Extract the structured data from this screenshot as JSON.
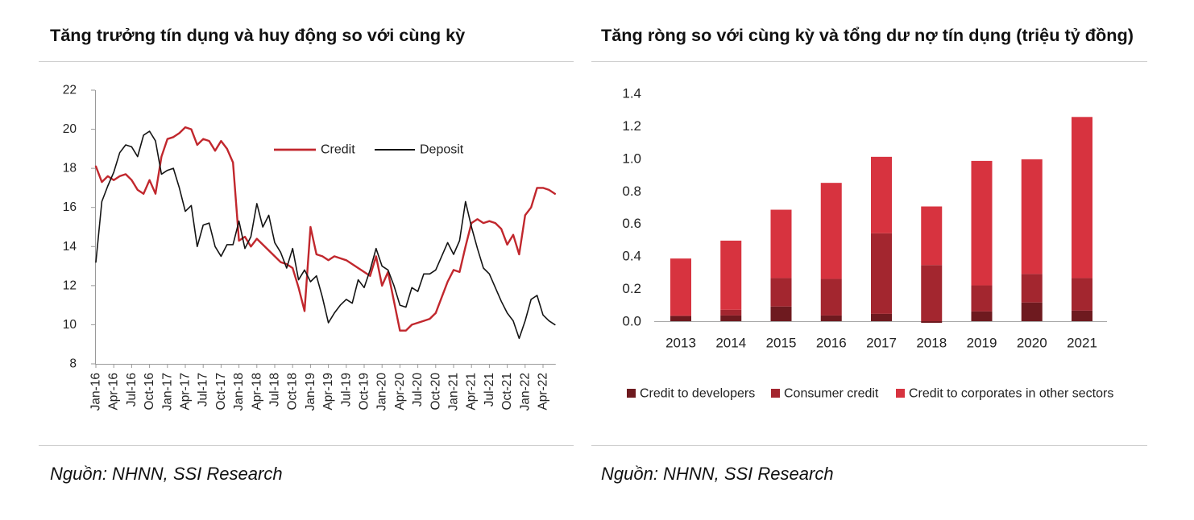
{
  "chart_data": [
    {
      "type": "line",
      "title": "Tăng trưởng tín dụng và huy động so với cùng kỳ",
      "source": "Nguồn: NHNN, SSI Research",
      "x": [
        "Jan-16",
        "Feb-16",
        "Mar-16",
        "Apr-16",
        "May-16",
        "Jun-16",
        "Jul-16",
        "Aug-16",
        "Sep-16",
        "Oct-16",
        "Nov-16",
        "Dec-16",
        "Jan-17",
        "Feb-17",
        "Mar-17",
        "Apr-17",
        "May-17",
        "Jun-17",
        "Jul-17",
        "Aug-17",
        "Sep-17",
        "Oct-17",
        "Nov-17",
        "Dec-17",
        "Jan-18",
        "Feb-18",
        "Mar-18",
        "Apr-18",
        "May-18",
        "Jun-18",
        "Jul-18",
        "Aug-18",
        "Sep-18",
        "Oct-18",
        "Nov-18",
        "Dec-18",
        "Jan-19",
        "Feb-19",
        "Mar-19",
        "Apr-19",
        "May-19",
        "Jun-19",
        "Jul-19",
        "Aug-19",
        "Sep-19",
        "Oct-19",
        "Nov-19",
        "Dec-19",
        "Jan-20",
        "Feb-20",
        "Mar-20",
        "Apr-20",
        "May-20",
        "Jun-20",
        "Jul-20",
        "Aug-20",
        "Sep-20",
        "Oct-20",
        "Nov-20",
        "Dec-20",
        "Jan-21",
        "Feb-21",
        "Mar-21",
        "Apr-21",
        "May-21",
        "Jun-21",
        "Jul-21",
        "Aug-21",
        "Sep-21",
        "Oct-21",
        "Nov-21",
        "Dec-21",
        "Jan-22",
        "Feb-22",
        "Mar-22",
        "Apr-22",
        "May-22",
        "Jun-22"
      ],
      "x_tick_labels": [
        "Jan-16",
        "Apr-16",
        "Jul-16",
        "Oct-16",
        "Jan-17",
        "Apr-17",
        "Jul-17",
        "Oct-17",
        "Jan-18",
        "Apr-18",
        "Jul-18",
        "Oct-18",
        "Jan-19",
        "Apr-19",
        "Jul-19",
        "Oct-19",
        "Jan-20",
        "Apr-20",
        "Jul-20",
        "Oct-20",
        "Jan-21",
        "Apr-21",
        "Jul-21",
        "Oct-21",
        "Jan-22",
        "Apr-22"
      ],
      "ylim": [
        8,
        22
      ],
      "y_tick_labels": [
        "8",
        "10",
        "12",
        "14",
        "16",
        "18",
        "20",
        "22"
      ],
      "grid": false,
      "legend_position": "top",
      "series": [
        {
          "name": "Credit",
          "color": "#c1272d",
          "values": [
            18.1,
            17.3,
            17.6,
            17.4,
            17.6,
            17.7,
            17.4,
            16.9,
            16.7,
            17.4,
            16.7,
            18.6,
            19.5,
            19.6,
            19.8,
            20.1,
            20.0,
            19.2,
            19.5,
            19.4,
            18.9,
            19.4,
            19.0,
            18.3,
            14.3,
            14.5,
            14.0,
            14.4,
            14.1,
            13.8,
            13.5,
            13.2,
            13.1,
            12.9,
            11.9,
            10.7,
            15.0,
            13.6,
            13.5,
            13.3,
            13.5,
            13.4,
            13.3,
            13.1,
            12.9,
            12.7,
            12.5,
            13.5,
            12.0,
            12.7,
            11.2,
            9.7,
            9.7,
            10.0,
            10.1,
            10.2,
            10.3,
            10.6,
            11.4,
            12.2,
            12.8,
            12.7,
            14.0,
            15.2,
            15.4,
            15.2,
            15.3,
            15.2,
            14.9,
            14.1,
            14.6,
            13.6,
            15.6,
            16.0,
            17.0,
            17.0,
            16.9,
            16.7
          ]
        },
        {
          "name": "Deposit",
          "color": "#141414",
          "values": [
            13.2,
            16.3,
            17.1,
            17.8,
            18.8,
            19.2,
            19.1,
            18.6,
            19.7,
            19.9,
            19.4,
            17.7,
            17.9,
            18.0,
            17.0,
            15.8,
            16.1,
            14.0,
            15.1,
            15.2,
            14.0,
            13.5,
            14.1,
            14.1,
            15.3,
            13.9,
            14.5,
            16.2,
            15.0,
            15.6,
            14.2,
            13.7,
            12.9,
            13.9,
            12.3,
            12.8,
            12.2,
            12.5,
            11.4,
            10.1,
            10.6,
            11.0,
            11.3,
            11.1,
            12.3,
            11.9,
            12.8,
            13.9,
            13.0,
            12.8,
            12.0,
            11.0,
            10.9,
            11.9,
            11.7,
            12.6,
            12.6,
            12.8,
            13.5,
            14.2,
            13.6,
            14.3,
            16.3,
            15.0,
            13.9,
            12.9,
            12.6,
            11.9,
            11.2,
            10.6,
            10.2,
            9.3,
            10.2,
            11.3,
            11.5,
            10.5,
            10.2,
            10.0
          ]
        }
      ]
    },
    {
      "type": "bar",
      "stacked": true,
      "title": "Tăng ròng so với cùng kỳ và tổng dư nợ tín dụng (triệu tỷ đồng)",
      "source": "Nguồn: NHNN, SSI Research",
      "categories": [
        "2013",
        "2014",
        "2015",
        "2016",
        "2017",
        "2018",
        "2019",
        "2020",
        "2021"
      ],
      "ylim": [
        0,
        1.4
      ],
      "y_tick_labels": [
        "0.0",
        "0.2",
        "0.4",
        "0.6",
        "0.8",
        "1.0",
        "1.2",
        "1.4"
      ],
      "grid": false,
      "legend_position": "bottom",
      "series": [
        {
          "name": "Credit to developers",
          "color": "#6e1a1f",
          "values": [
            0.03,
            0.035,
            0.09,
            0.035,
            0.045,
            -0.01,
            0.06,
            0.115,
            0.065
          ]
        },
        {
          "name": "Consumer credit",
          "color": "#a3262f",
          "values": [
            0.005,
            0.035,
            0.175,
            0.225,
            0.495,
            0.345,
            0.16,
            0.175,
            0.2
          ]
        },
        {
          "name": "Credit to corporates in other sectors",
          "color": "#d7333f",
          "values": [
            0.35,
            0.425,
            0.42,
            0.59,
            0.47,
            0.36,
            0.765,
            0.705,
            0.99
          ]
        }
      ]
    }
  ]
}
